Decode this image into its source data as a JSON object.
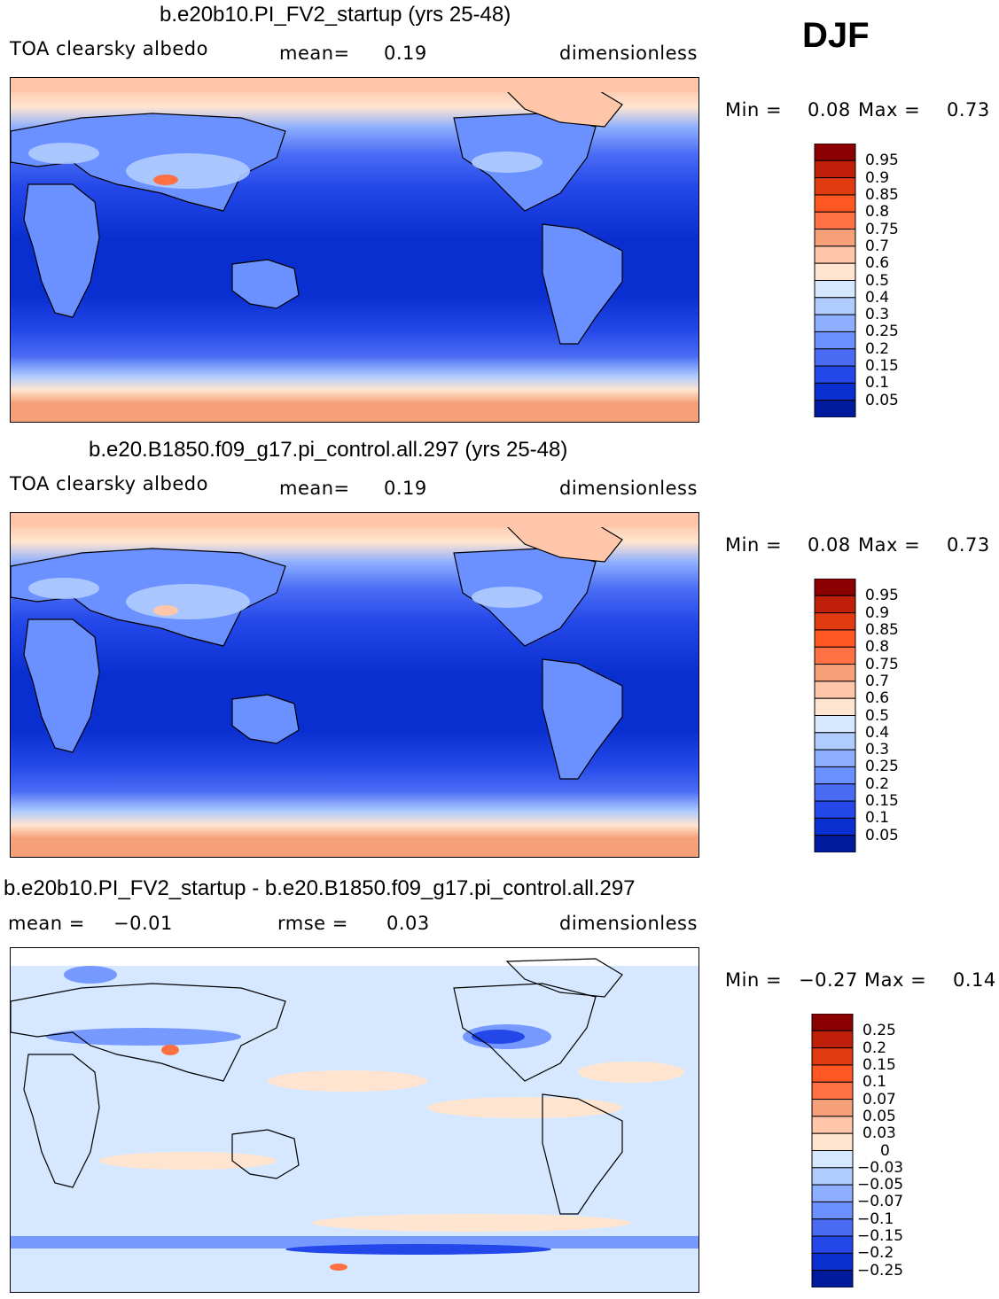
{
  "season": "DJF",
  "chart_data": [
    {
      "type": "heatmap",
      "title": "b.e20b10.PI_FV2_startup (yrs 25-48)",
      "variable": "TOA clearsky albedo",
      "mean_label": "mean=",
      "mean": "0.19",
      "units": "dimensionless",
      "min_label": "Min =",
      "min": "0.08",
      "max_label": "Max =",
      "max": "0.73",
      "colorbar_levels": [
        "0.95",
        "0.9",
        "0.85",
        "0.8",
        "0.75",
        "0.7",
        "0.6",
        "0.5",
        "0.4",
        "0.3",
        "0.25",
        "0.2",
        "0.15",
        "0.1",
        "0.05"
      ],
      "colorbar_colors": [
        "#8b0000",
        "#c0200a",
        "#e03b10",
        "#ff5722",
        "#ff7043",
        "#f5a078",
        "#ffc6aa",
        "#ffe5d0",
        "#d6e8ff",
        "#b0ccff",
        "#8eafff",
        "#6b90ff",
        "#4a6cf5",
        "#2347e8",
        "#0a2fd0",
        "#001a9e"
      ]
    },
    {
      "type": "heatmap",
      "title": "b.e20.B1850.f09_g17.pi_control.all.297 (yrs 25-48)",
      "variable": "TOA clearsky albedo",
      "mean_label": "mean=",
      "mean": "0.19",
      "units": "dimensionless",
      "min_label": "Min =",
      "min": "0.08",
      "max_label": "Max =",
      "max": "0.73",
      "colorbar_levels": [
        "0.95",
        "0.9",
        "0.85",
        "0.8",
        "0.75",
        "0.7",
        "0.6",
        "0.5",
        "0.4",
        "0.3",
        "0.25",
        "0.2",
        "0.15",
        "0.1",
        "0.05"
      ],
      "colorbar_colors": [
        "#8b0000",
        "#c0200a",
        "#e03b10",
        "#ff5722",
        "#ff7043",
        "#f5a078",
        "#ffc6aa",
        "#ffe5d0",
        "#d6e8ff",
        "#b0ccff",
        "#8eafff",
        "#6b90ff",
        "#4a6cf5",
        "#2347e8",
        "#0a2fd0",
        "#001a9e"
      ]
    },
    {
      "type": "heatmap",
      "title": "b.e20b10.PI_FV2_startup - b.e20.B1850.f09_g17.pi_control.all.297",
      "mean_label": "mean =",
      "mean": "−0.01",
      "rmse_label": "rmse =",
      "rmse": "0.03",
      "units": "dimensionless",
      "min_label": "Min =",
      "min": "−0.27",
      "max_label": "Max =",
      "max": "0.14",
      "colorbar_levels": [
        "0.25",
        "0.2",
        "0.15",
        "0.1",
        "0.07",
        "0.05",
        "0.03",
        "0",
        "−0.03",
        "−0.05",
        "−0.07",
        "−0.1",
        "−0.15",
        "−0.2",
        "−0.25"
      ],
      "colorbar_colors": [
        "#8b0000",
        "#c0200a",
        "#e03b10",
        "#ff5722",
        "#ff7043",
        "#f5a078",
        "#ffc6aa",
        "#ffe5d0",
        "#d6e8ff",
        "#b0ccff",
        "#8eafff",
        "#6b90ff",
        "#4a6cf5",
        "#2347e8",
        "#0a2fd0",
        "#001a9e"
      ]
    }
  ]
}
